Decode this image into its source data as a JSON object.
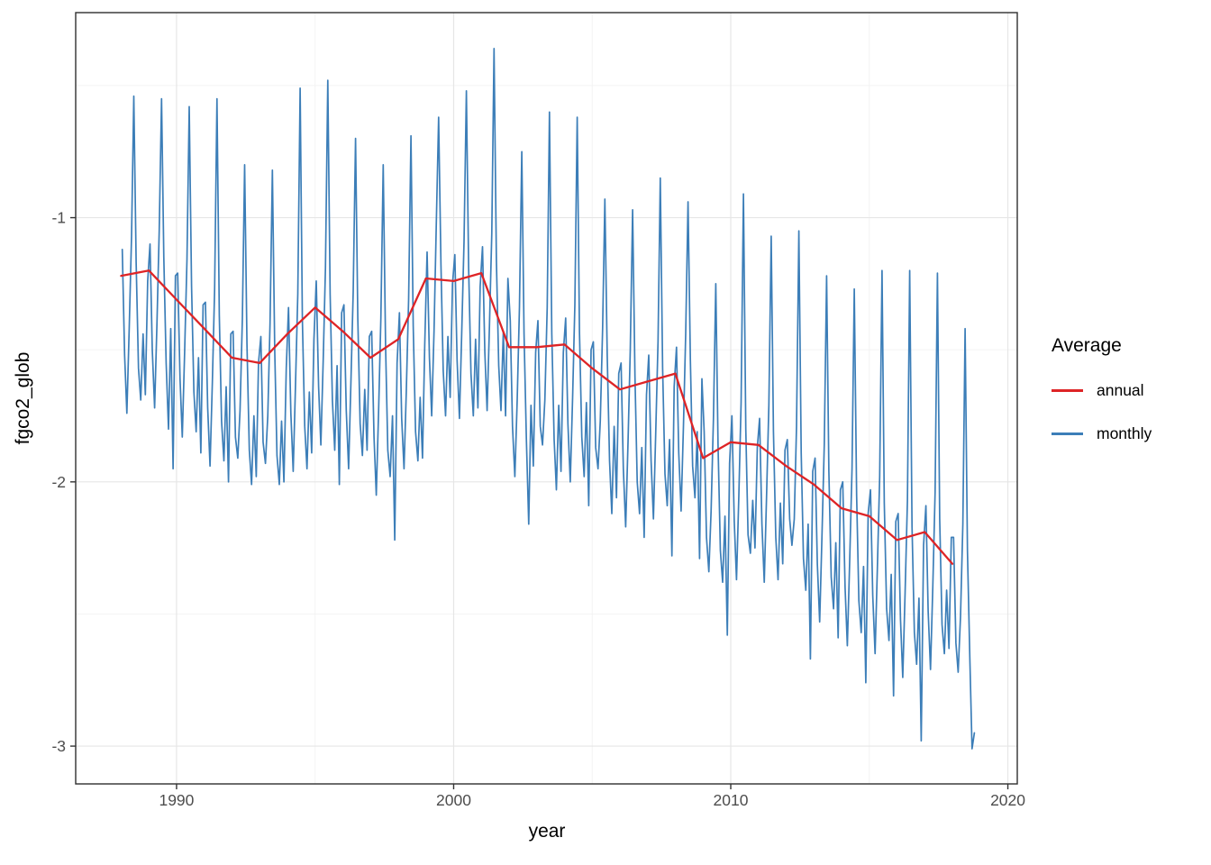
{
  "chart_data": {
    "type": "line",
    "title": "",
    "xlabel": "year",
    "ylabel": "fgco2_glob",
    "grid": "on",
    "panel": {
      "background": "#ffffff",
      "border_color": "#2f2f2f",
      "grid_major_color": "#e6e6e6",
      "grid_minor_color": "#f2f2f2"
    },
    "x_axis": {
      "range": [
        1986.36,
        2020.34
      ],
      "ticks": [
        1990,
        2000,
        2010,
        2020
      ],
      "tick_labels": [
        "1990",
        "2000",
        "2010",
        "2020"
      ],
      "minor": [
        1995,
        2005,
        2015
      ]
    },
    "y_axis": {
      "range": [
        -3.143,
        -0.224
      ],
      "ticks": [
        -1,
        -2,
        -3
      ],
      "tick_labels": [
        "-1",
        "-2",
        "-3"
      ],
      "minor": [
        -0.5,
        -1.5,
        -2.5
      ]
    },
    "legend": {
      "title": "Average",
      "position": "right",
      "entries": [
        {
          "label": "annual",
          "color": "#de2426",
          "key_thickness": 3
        },
        {
          "label": "monthly",
          "color": "#3c7eb8",
          "key_thickness": 2.4
        }
      ]
    },
    "series": [
      {
        "name": "annual",
        "color": "#de2426",
        "width": 2.3,
        "x": [
          1988,
          1989,
          1990,
          1991,
          1992,
          1993,
          1994,
          1995,
          1996,
          1997,
          1998,
          1999,
          2000,
          2001,
          2002,
          2003,
          2004,
          2005,
          2006,
          2007,
          2008,
          2009,
          2010,
          2011,
          2012,
          2013,
          2014,
          2015,
          2016,
          2017,
          2018
        ],
        "values": [
          -1.22,
          -1.2,
          -1.31,
          -1.42,
          -1.53,
          -1.55,
          -1.44,
          -1.34,
          -1.43,
          -1.53,
          -1.46,
          -1.23,
          -1.24,
          -1.21,
          -1.49,
          -1.49,
          -1.48,
          -1.57,
          -1.65,
          -1.62,
          -1.59,
          -1.91,
          -1.85,
          -1.86,
          -1.94,
          -2.01,
          -2.1,
          -2.13,
          -2.22,
          -2.19,
          -2.31
        ]
      },
      {
        "name": "monthly",
        "color": "#3c7eb8",
        "width": 1.7,
        "monthly_by_year": [
          {
            "year": 1988,
            "values": [
              -1.12,
              -1.52,
              -1.74,
              -1.42,
              -1.07,
              -0.54,
              -1.17,
              -1.57,
              -1.69,
              -1.44,
              -1.67,
              -1.24
            ]
          },
          {
            "year": 1989,
            "values": [
              -1.1,
              -1.5,
              -1.72,
              -1.4,
              -1.05,
              -0.55,
              -1.15,
              -1.55,
              -1.8,
              -1.42,
              -1.95,
              -1.22
            ]
          },
          {
            "year": 1990,
            "values": [
              -1.21,
              -1.61,
              -1.83,
              -1.51,
              -1.16,
              -0.58,
              -1.26,
              -1.66,
              -1.81,
              -1.53,
              -1.89,
              -1.33
            ]
          },
          {
            "year": 1991,
            "values": [
              -1.32,
              -1.72,
              -1.94,
              -1.62,
              -1.27,
              -0.55,
              -1.37,
              -1.77,
              -1.92,
              -1.64,
              -2.0,
              -1.44
            ]
          },
          {
            "year": 1992,
            "values": [
              -1.43,
              -1.83,
              -1.91,
              -1.73,
              -1.38,
              -0.8,
              -1.48,
              -1.88,
              -2.01,
              -1.75,
              -1.98,
              -1.55
            ]
          },
          {
            "year": 1993,
            "values": [
              -1.45,
              -1.85,
              -1.93,
              -1.75,
              -1.4,
              -0.82,
              -1.5,
              -1.9,
              -2.01,
              -1.77,
              -2.0,
              -1.57
            ]
          },
          {
            "year": 1994,
            "values": [
              -1.34,
              -1.74,
              -1.96,
              -1.64,
              -1.29,
              -0.51,
              -1.39,
              -1.79,
              -1.95,
              -1.66,
              -1.89,
              -1.46
            ]
          },
          {
            "year": 1995,
            "values": [
              -1.24,
              -1.64,
              -1.86,
              -1.54,
              -1.19,
              -0.48,
              -1.29,
              -1.69,
              -1.88,
              -1.56,
              -2.01,
              -1.36
            ]
          },
          {
            "year": 1996,
            "values": [
              -1.33,
              -1.73,
              -1.95,
              -1.63,
              -1.28,
              -0.7,
              -1.38,
              -1.78,
              -1.9,
              -1.65,
              -1.88,
              -1.45
            ]
          },
          {
            "year": 1997,
            "values": [
              -1.43,
              -1.83,
              -2.05,
              -1.73,
              -1.38,
              -0.8,
              -1.48,
              -1.88,
              -1.98,
              -1.75,
              -2.22,
              -1.55
            ]
          },
          {
            "year": 1998,
            "values": [
              -1.36,
              -1.76,
              -1.95,
              -1.66,
              -1.31,
              -0.69,
              -1.41,
              -1.81,
              -1.92,
              -1.68,
              -1.91,
              -1.48
            ]
          },
          {
            "year": 1999,
            "values": [
              -1.13,
              -1.53,
              -1.75,
              -1.43,
              -1.01,
              -0.62,
              -1.18,
              -1.58,
              -1.75,
              -1.45,
              -1.68,
              -1.25
            ]
          },
          {
            "year": 2000,
            "values": [
              -1.14,
              -1.54,
              -1.76,
              -1.44,
              -1.09,
              -0.52,
              -1.19,
              -1.59,
              -1.75,
              -1.46,
              -1.72,
              -1.26
            ]
          },
          {
            "year": 2001,
            "values": [
              -1.11,
              -1.51,
              -1.73,
              -1.41,
              -1.06,
              -0.36,
              -1.16,
              -1.56,
              -1.73,
              -1.43,
              -1.75,
              -1.23
            ]
          },
          {
            "year": 2002,
            "values": [
              -1.39,
              -1.79,
              -1.98,
              -1.69,
              -1.34,
              -0.75,
              -1.44,
              -1.84,
              -2.16,
              -1.71,
              -1.94,
              -1.51
            ]
          },
          {
            "year": 2003,
            "values": [
              -1.39,
              -1.79,
              -1.86,
              -1.69,
              -1.34,
              -0.6,
              -1.44,
              -1.84,
              -2.03,
              -1.71,
              -1.96,
              -1.51
            ]
          },
          {
            "year": 2004,
            "values": [
              -1.38,
              -1.78,
              -2.0,
              -1.68,
              -1.33,
              -0.62,
              -1.43,
              -1.83,
              -1.98,
              -1.7,
              -2.09,
              -1.5
            ]
          },
          {
            "year": 2005,
            "values": [
              -1.47,
              -1.87,
              -1.95,
              -1.77,
              -1.42,
              -0.93,
              -1.52,
              -1.92,
              -2.12,
              -1.79,
              -2.06,
              -1.59
            ]
          },
          {
            "year": 2006,
            "values": [
              -1.55,
              -1.95,
              -2.17,
              -1.85,
              -1.5,
              -0.97,
              -1.6,
              -2.0,
              -2.12,
              -1.87,
              -2.21,
              -1.67
            ]
          },
          {
            "year": 2007,
            "values": [
              -1.52,
              -1.92,
              -2.14,
              -1.82,
              -1.47,
              -0.85,
              -1.57,
              -1.97,
              -2.09,
              -1.84,
              -2.28,
              -1.64
            ]
          },
          {
            "year": 2008,
            "values": [
              -1.49,
              -1.89,
              -2.11,
              -1.79,
              -1.44,
              -0.94,
              -1.54,
              -1.94,
              -2.06,
              -1.81,
              -2.29,
              -1.61
            ]
          },
          {
            "year": 2009,
            "values": [
              -1.81,
              -2.21,
              -2.34,
              -2.11,
              -1.76,
              -1.25,
              -1.86,
              -2.26,
              -2.38,
              -2.13,
              -2.58,
              -1.93
            ]
          },
          {
            "year": 2010,
            "values": [
              -1.75,
              -2.15,
              -2.37,
              -2.05,
              -1.7,
              -0.91,
              -1.8,
              -2.2,
              -2.27,
              -2.07,
              -2.25,
              -1.87
            ]
          },
          {
            "year": 2011,
            "values": [
              -1.76,
              -2.16,
              -2.38,
              -2.06,
              -1.71,
              -1.07,
              -1.81,
              -2.21,
              -2.37,
              -2.08,
              -2.31,
              -1.88
            ]
          },
          {
            "year": 2012,
            "values": [
              -1.84,
              -2.14,
              -2.24,
              -2.14,
              -1.79,
              -1.05,
              -1.89,
              -2.29,
              -2.41,
              -2.16,
              -2.67,
              -1.96
            ]
          },
          {
            "year": 2013,
            "values": [
              -1.91,
              -2.31,
              -2.53,
              -2.21,
              -1.86,
              -1.22,
              -1.96,
              -2.36,
              -2.48,
              -2.23,
              -2.59,
              -2.03
            ]
          },
          {
            "year": 2014,
            "values": [
              -2.0,
              -2.4,
              -2.62,
              -2.3,
              -1.95,
              -1.27,
              -2.05,
              -2.45,
              -2.57,
              -2.32,
              -2.76,
              -2.12
            ]
          },
          {
            "year": 2015,
            "values": [
              -2.03,
              -2.43,
              -2.65,
              -2.33,
              -1.98,
              -1.2,
              -2.08,
              -2.48,
              -2.6,
              -2.35,
              -2.81,
              -2.15
            ]
          },
          {
            "year": 2016,
            "values": [
              -2.12,
              -2.52,
              -2.74,
              -2.42,
              -2.07,
              -1.2,
              -2.17,
              -2.57,
              -2.69,
              -2.44,
              -2.98,
              -2.24
            ]
          },
          {
            "year": 2017,
            "values": [
              -2.09,
              -2.49,
              -2.71,
              -2.39,
              -2.04,
              -1.21,
              -2.14,
              -2.54,
              -2.65,
              -2.41,
              -2.63,
              -2.21
            ]
          },
          {
            "year": 2018,
            "values": [
              -2.21,
              -2.61,
              -2.72,
              -2.51,
              -2.16,
              -1.42,
              -2.26,
              -2.66,
              -3.01,
              -2.95
            ]
          }
        ]
      }
    ]
  }
}
